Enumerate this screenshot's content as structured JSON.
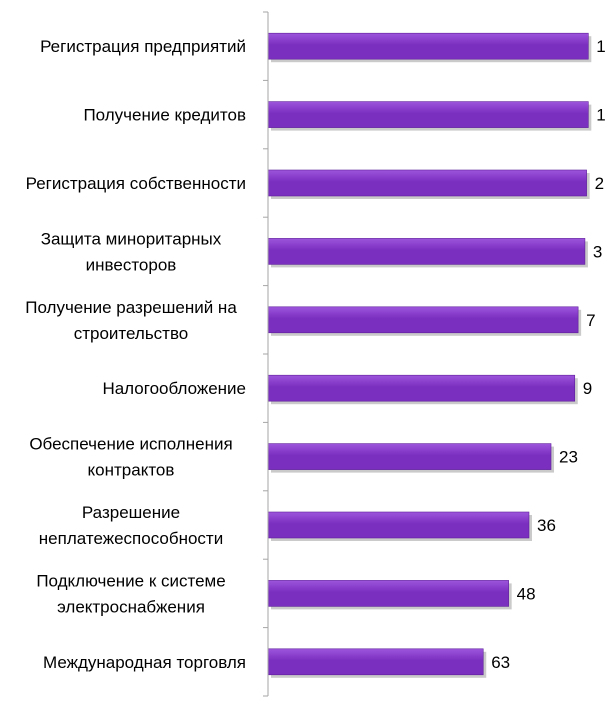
{
  "chart_data": {
    "type": "bar",
    "orientation": "horizontal",
    "categories": [
      [
        "Регистрация предприятий"
      ],
      [
        "Получение кредитов"
      ],
      [
        "Регистрация собственности"
      ],
      [
        "Защита миноритарных",
        "инвесторов"
      ],
      [
        "Получение разрешений  на",
        "строительство"
      ],
      [
        "Налогообложение"
      ],
      [
        "Обеспечение исполнения",
        "контрактов"
      ],
      [
        "Разрешение",
        "неплатежеспособности"
      ],
      [
        "Подключение к системе",
        "электроснабжения"
      ],
      [
        "Международная торговля"
      ]
    ],
    "values": [
      1,
      1,
      2,
      3,
      7,
      9,
      23,
      36,
      48,
      63
    ],
    "data_labels": [
      "1",
      "1",
      "2",
      "3",
      "7",
      "9",
      "23",
      "36",
      "48",
      "63"
    ],
    "axis_direction": "reversed",
    "xlim": [
      0,
      190
    ],
    "grid": false,
    "legend": "none",
    "colors": {
      "bar_fill": "#7b2fbf",
      "bar_light": "#9d55dc",
      "bar_shadow": "#bdbdbd",
      "axis": "#a6a6a6"
    }
  }
}
